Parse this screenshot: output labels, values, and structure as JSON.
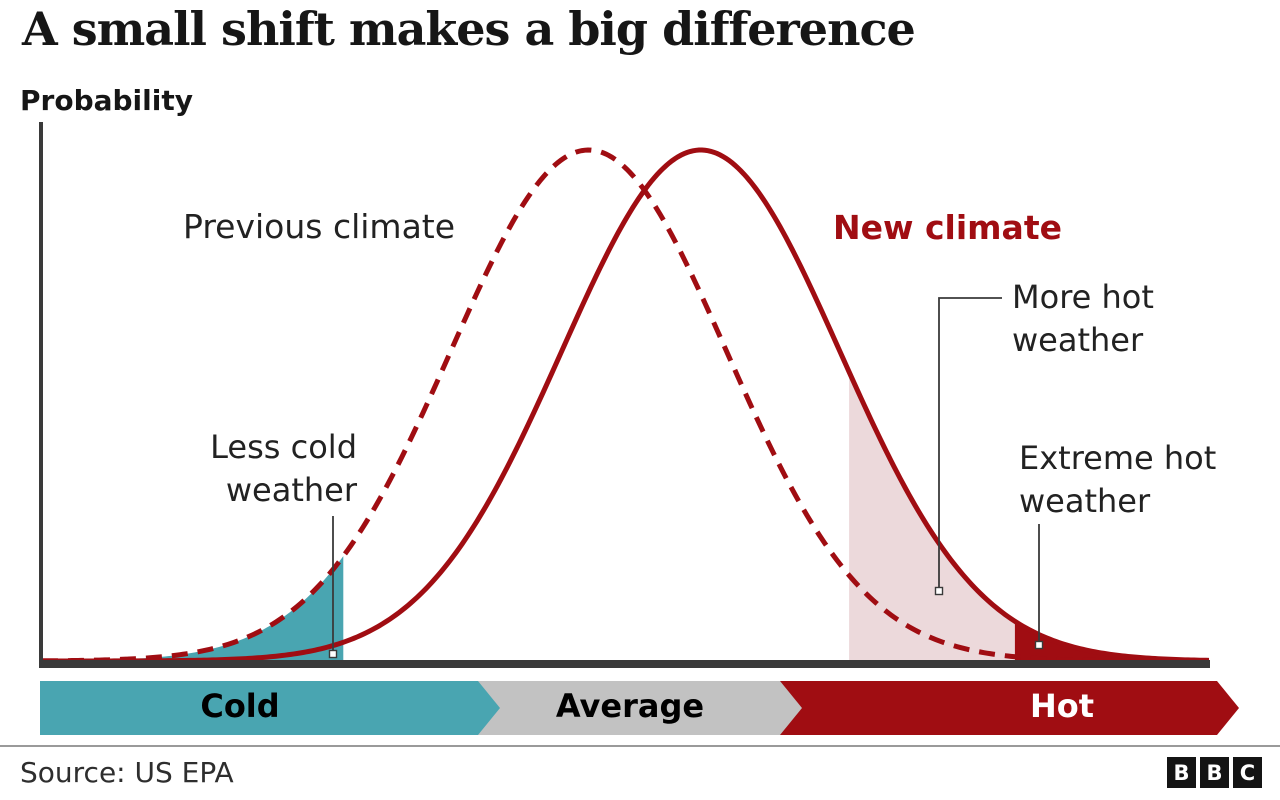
{
  "title": "A small shift makes a big difference",
  "chart_data": {
    "type": "area",
    "title": "A small shift makes a big difference",
    "subtitle": "",
    "xlabel": "",
    "ylabel": "Probability",
    "x_range": [
      0,
      100
    ],
    "grid": false,
    "legend_position": "inline-labels",
    "series": [
      {
        "name": "Previous climate",
        "distribution": "normal",
        "mean": 46.8,
        "sigma": 11.8,
        "peak": 1.0,
        "line_style": "dashed",
        "color": "#a00d12"
      },
      {
        "name": "New climate",
        "distribution": "normal",
        "mean": 56.4,
        "sigma": 11.9,
        "peak": 1.0,
        "line_style": "solid",
        "color": "#a00d12"
      }
    ],
    "shaded_regions": [
      {
        "label": "Less cold weather",
        "series": "Previous climate",
        "x_from": 0,
        "x_to": 25.8,
        "color": "#49a5b1"
      },
      {
        "label": "More hot weather",
        "series": "New climate",
        "x_from": 69.1,
        "x_to": 83.3,
        "color": "#ecd9db"
      },
      {
        "label": "Extreme hot weather",
        "series": "New climate",
        "x_from": 83.3,
        "x_to": 100,
        "color": "#a00d12"
      }
    ],
    "axis_bar_segments": [
      {
        "label": "Cold",
        "color": "#49a5b1",
        "text_color": "#000000"
      },
      {
        "label": "Average",
        "color": "#c2c2c2",
        "text_color": "#000000"
      },
      {
        "label": "Hot",
        "color": "#a00d12",
        "text_color": "#ffffff"
      }
    ],
    "axis_color": "#3a3a3a"
  },
  "footer": {
    "source": "Source: US EPA",
    "logo_letters": [
      "B",
      "B",
      "C"
    ]
  },
  "colors": {
    "accent_red": "#a00d12",
    "teal": "#49a5b1",
    "pink": "#ecd9db",
    "bar_gray": "#c2c2c2",
    "axis": "#3a3a3a",
    "text_dark": "#222222"
  }
}
